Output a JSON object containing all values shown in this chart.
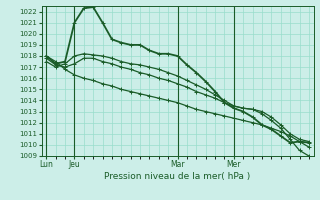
{
  "xlabel": "Pression niveau de la mer( hPa )",
  "bg_color": "#cceee8",
  "grid_color": "#99ddcc",
  "line_color": "#1a5c28",
  "ylim": [
    1009,
    1022.5
  ],
  "yticks": [
    1009,
    1010,
    1011,
    1012,
    1013,
    1014,
    1015,
    1016,
    1017,
    1018,
    1019,
    1020,
    1021,
    1022
  ],
  "day_labels": [
    "Lun",
    "Jeu",
    "Mar",
    "Mer"
  ],
  "day_positions": [
    0,
    3,
    14,
    20
  ],
  "n_points": 29,
  "series": [
    [
      1018.0,
      1017.3,
      1017.5,
      1021.0,
      1022.3,
      1022.4,
      1021.0,
      1019.5,
      1019.2,
      1019.0,
      1019.0,
      1018.5,
      1018.2,
      1018.2,
      1018.0,
      1017.2,
      1016.5,
      1015.7,
      1014.8,
      1013.8,
      1013.3,
      1013.0,
      1012.5,
      1011.8,
      1011.4,
      1010.8,
      1010.2,
      1010.3,
      1010.2
    ],
    [
      1017.5,
      1017.0,
      1017.3,
      1018.0,
      1018.2,
      1018.1,
      1018.0,
      1017.8,
      1017.5,
      1017.3,
      1017.2,
      1017.0,
      1016.8,
      1016.5,
      1016.2,
      1015.8,
      1015.4,
      1015.0,
      1014.5,
      1014.0,
      1013.5,
      1013.3,
      1013.2,
      1012.8,
      1012.2,
      1011.5,
      1010.5,
      1009.5,
      1009.0
    ],
    [
      1017.8,
      1017.2,
      1017.0,
      1017.3,
      1017.8,
      1017.8,
      1017.5,
      1017.3,
      1017.0,
      1016.8,
      1016.5,
      1016.3,
      1016.0,
      1015.8,
      1015.5,
      1015.2,
      1014.8,
      1014.5,
      1014.2,
      1013.8,
      1013.5,
      1013.3,
      1013.2,
      1013.0,
      1012.5,
      1011.8,
      1011.0,
      1010.5,
      1010.3
    ],
    [
      1018.0,
      1017.5,
      1016.8,
      1016.3,
      1016.0,
      1015.8,
      1015.5,
      1015.3,
      1015.0,
      1014.8,
      1014.6,
      1014.4,
      1014.2,
      1014.0,
      1013.8,
      1013.5,
      1013.2,
      1013.0,
      1012.8,
      1012.6,
      1012.4,
      1012.2,
      1012.0,
      1011.8,
      1011.5,
      1011.2,
      1010.8,
      1010.3,
      1009.8
    ]
  ]
}
